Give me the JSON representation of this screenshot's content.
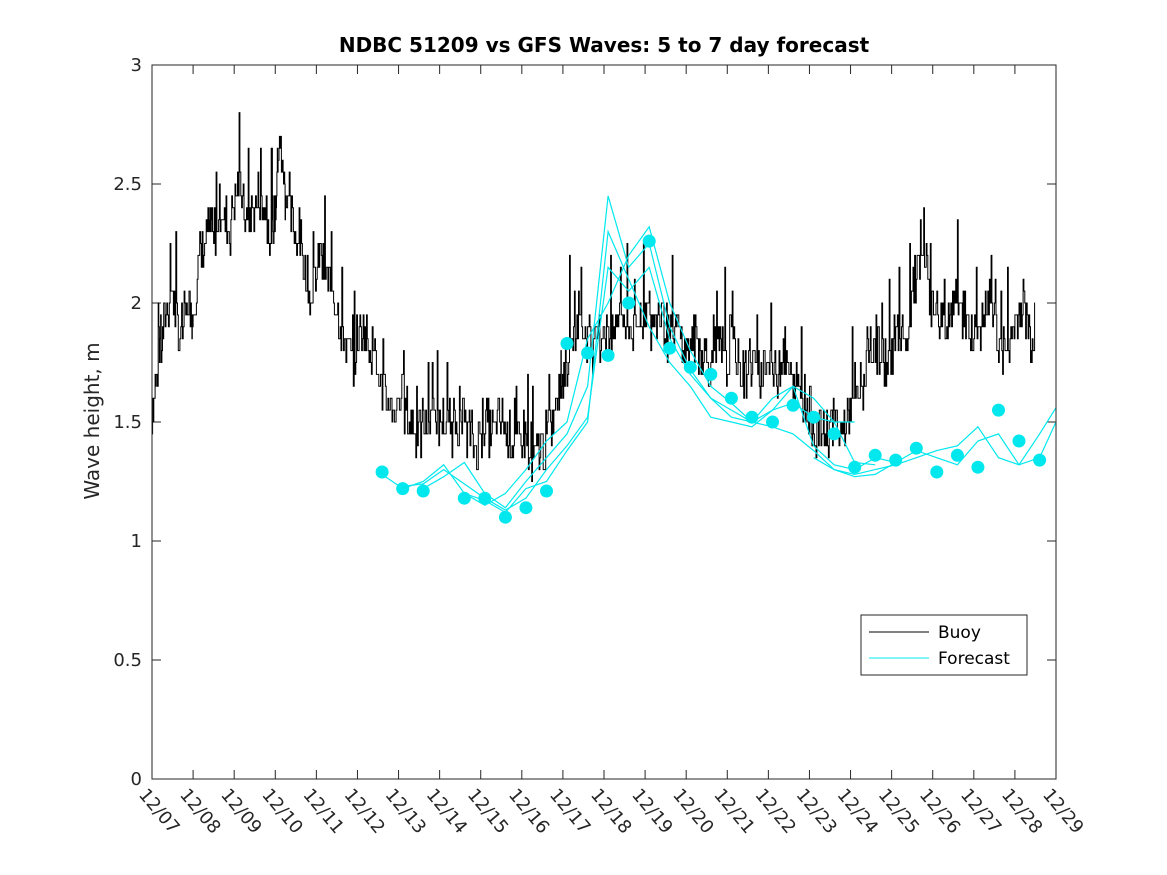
{
  "chart_data": {
    "type": "line",
    "title": "NDBC 51209 vs GFS Waves: 5 to 7 day forecast",
    "xlabel": "",
    "ylabel": "Wave height, m",
    "xlim": [
      0,
      22
    ],
    "ylim": [
      0,
      3
    ],
    "yticks": [
      0,
      0.5,
      1,
      1.5,
      2,
      2.5,
      3
    ],
    "ytick_labels": [
      "0",
      "0.5",
      "1",
      "1.5",
      "2",
      "2.5",
      "3"
    ],
    "xtick_labels": [
      "12/07",
      "12/08",
      "12/09",
      "12/10",
      "12/11",
      "12/12",
      "12/13",
      "12/14",
      "12/15",
      "12/16",
      "12/17",
      "12/18",
      "12/19",
      "12/20",
      "12/21",
      "12/22",
      "12/23",
      "12/24",
      "12/25",
      "12/26",
      "12/27",
      "12/28",
      "12/29"
    ],
    "legend": {
      "position": "bottom-right",
      "entries": [
        {
          "label": "Buoy",
          "color": "#000000"
        },
        {
          "label": "Forecast",
          "color": "#00e8ee"
        }
      ]
    },
    "colors": {
      "buoy": "#000000",
      "forecast": "#00e8ee",
      "axes": "#262626"
    },
    "series": [
      {
        "name": "Buoy",
        "x": [
          0,
          0.15,
          0.3,
          0.5,
          0.7,
          0.9,
          1.0,
          1.2,
          1.4,
          1.5,
          1.7,
          1.9,
          2.1,
          2.3,
          2.5,
          2.7,
          2.9,
          3.0,
          3.1,
          3.2,
          3.3,
          3.5,
          3.7,
          3.9,
          4.1,
          4.3,
          4.5,
          4.7,
          4.9,
          5.1,
          5.3,
          5.5,
          5.7,
          5.9,
          6.1,
          6.3,
          6.5,
          6.7,
          6.9,
          7.1,
          7.3,
          7.5,
          7.7,
          7.9,
          8.1,
          8.3,
          8.5,
          8.7,
          8.9,
          9.1,
          9.3,
          9.5,
          9.7,
          9.9,
          10.0,
          10.2,
          10.4,
          10.6,
          10.8,
          11.0,
          11.2,
          11.4,
          11.6,
          11.8,
          12.0,
          12.2,
          12.4,
          12.6,
          12.8,
          13.0,
          13.2,
          13.4,
          13.6,
          13.8,
          14.0,
          14.2,
          14.4,
          14.6,
          14.8,
          15.0,
          15.2,
          15.4,
          15.6,
          15.8,
          16.0,
          16.2,
          16.4,
          16.6,
          16.8,
          17.0,
          17.2,
          17.4,
          17.6,
          17.8,
          18.0,
          18.2,
          18.4,
          18.6,
          18.8,
          19.0,
          19.2,
          19.4,
          19.6,
          19.8,
          20.0,
          20.2,
          20.4,
          20.6,
          20.8,
          21.0,
          21.2,
          21.4,
          21.5
        ],
        "values": [
          1.55,
          1.7,
          1.9,
          2.05,
          1.85,
          2.0,
          1.95,
          2.2,
          2.3,
          2.25,
          2.4,
          2.3,
          2.5,
          2.35,
          2.4,
          2.45,
          2.3,
          2.35,
          2.7,
          2.55,
          2.4,
          2.3,
          2.2,
          2.0,
          2.2,
          2.1,
          2.0,
          1.85,
          1.75,
          1.9,
          1.85,
          1.7,
          1.6,
          1.55,
          1.6,
          1.5,
          1.45,
          1.5,
          1.55,
          1.5,
          1.45,
          1.5,
          1.45,
          1.4,
          1.5,
          1.45,
          1.5,
          1.45,
          1.4,
          1.45,
          1.35,
          1.4,
          1.45,
          1.6,
          1.7,
          1.8,
          1.95,
          1.85,
          1.8,
          1.9,
          1.85,
          1.95,
          1.9,
          1.85,
          2.0,
          1.9,
          1.95,
          1.85,
          1.9,
          1.8,
          1.85,
          1.8,
          1.75,
          1.8,
          1.75,
          1.8,
          1.7,
          1.75,
          1.7,
          1.75,
          1.7,
          1.8,
          1.65,
          1.65,
          1.55,
          1.45,
          1.45,
          1.5,
          1.45,
          1.55,
          1.6,
          1.7,
          1.85,
          1.75,
          1.8,
          1.9,
          1.85,
          2.1,
          2.2,
          2.0,
          1.95,
          1.9,
          2.0,
          1.95,
          1.85,
          1.9,
          2.0,
          1.85,
          1.8,
          1.9,
          2.0,
          1.85,
          1.85
        ]
      },
      {
        "name": "Forecast",
        "runs": [
          {
            "x": [
              5.6,
              6.1,
              6.6,
              7.1,
              7.6,
              8.1,
              8.6,
              9.1,
              9.6,
              10.1,
              10.6,
              11.1,
              11.6,
              12.1,
              12.6,
              13.1,
              13.6,
              14.1,
              14.6,
              15.1,
              15.6,
              16.1,
              16.6,
              17.1
            ],
            "values": [
              1.28,
              1.22,
              1.25,
              1.32,
              1.2,
              1.17,
              1.12,
              1.22,
              1.25,
              1.38,
              1.5,
              2.3,
              2.1,
              1.9,
              1.75,
              1.65,
              1.52,
              1.5,
              1.48,
              1.55,
              1.58,
              1.52,
              1.5,
              1.5
            ]
          },
          {
            "x": [
              6.1,
              6.6,
              7.1,
              7.6,
              8.1,
              8.6,
              9.1,
              9.6,
              10.1,
              10.6,
              11.1,
              11.6,
              12.1,
              12.6,
              13.1,
              13.6,
              14.1,
              14.6,
              15.1,
              15.6,
              16.1,
              16.6,
              17.1,
              17.6
            ],
            "values": [
              1.23,
              1.24,
              1.3,
              1.24,
              1.18,
              1.13,
              1.18,
              1.3,
              1.4,
              1.52,
              2.15,
              2.05,
              2.15,
              1.85,
              1.7,
              1.6,
              1.55,
              1.5,
              1.55,
              1.65,
              1.6,
              1.5,
              1.33,
              1.32
            ]
          },
          {
            "x": [
              6.6,
              7.1,
              7.6,
              8.1,
              8.6,
              9.1,
              9.6,
              10.1,
              10.6,
              11.1,
              11.6,
              12.1,
              12.6,
              13.1,
              13.6,
              14.1,
              14.6,
              15.1,
              15.6,
              16.1,
              16.6,
              17.1,
              17.6,
              18.1
            ],
            "values": [
              1.22,
              1.27,
              1.33,
              1.2,
              1.14,
              1.25,
              1.35,
              1.45,
              1.65,
              2.45,
              2.15,
              2.25,
              1.9,
              1.72,
              1.6,
              1.52,
              1.5,
              1.6,
              1.65,
              1.4,
              1.32,
              1.3,
              1.35,
              1.33
            ]
          },
          {
            "x": [
              7.6,
              8.1,
              8.6,
              9.1,
              9.6,
              10.1,
              10.6,
              11.1,
              11.6,
              12.1,
              12.6,
              13.1,
              13.6,
              14.1,
              14.6,
              15.1,
              15.6,
              16.1,
              16.6,
              17.1,
              17.6,
              18.1,
              18.6,
              19.1,
              19.6,
              20.1,
              20.6,
              21.1,
              21.6,
              22.0
            ],
            "values": [
              1.2,
              1.15,
              1.2,
              1.3,
              1.42,
              1.5,
              1.85,
              2.0,
              2.2,
              2.32,
              2.0,
              1.8,
              1.65,
              1.58,
              1.5,
              1.48,
              1.45,
              1.38,
              1.3,
              1.28,
              1.3,
              1.32,
              1.35,
              1.38,
              1.4,
              1.48,
              1.35,
              1.32,
              1.45,
              1.56
            ]
          },
          {
            "x": [
              16.1,
              16.6,
              17.1,
              17.6,
              18.1,
              18.6,
              19.1,
              19.6,
              20.1,
              20.6,
              21.1,
              21.6,
              22.0
            ],
            "values": [
              1.35,
              1.3,
              1.27,
              1.28,
              1.33,
              1.38,
              1.35,
              1.32,
              1.42,
              1.45,
              1.32,
              1.35,
              1.5
            ]
          }
        ],
        "markers": {
          "x": [
            5.6,
            6.1,
            6.6,
            7.6,
            8.1,
            8.6,
            9.1,
            9.6,
            10.1,
            10.6,
            11.1,
            11.6,
            12.1,
            12.6,
            13.1,
            13.6,
            14.1,
            14.6,
            15.1,
            15.6,
            16.1,
            16.6,
            17.1,
            17.6,
            18.1,
            18.6,
            19.1,
            19.6,
            20.1,
            20.6,
            21.1,
            21.6
          ],
          "values": [
            1.29,
            1.22,
            1.21,
            1.18,
            1.18,
            1.1,
            1.14,
            1.21,
            1.83,
            1.79,
            1.78,
            2.0,
            2.26,
            1.81,
            1.73,
            1.7,
            1.6,
            1.52,
            1.5,
            1.57,
            1.52,
            1.45,
            1.31,
            1.36,
            1.34,
            1.39,
            1.29,
            1.36,
            1.31,
            1.55,
            1.42,
            1.34
          ]
        }
      }
    ]
  }
}
